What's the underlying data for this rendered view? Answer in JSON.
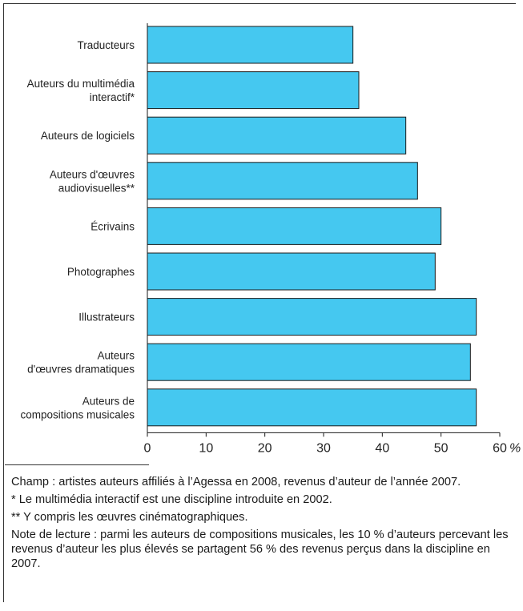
{
  "chart_data": {
    "type": "bar",
    "orientation": "horizontal",
    "categories": [
      [
        "Traducteurs"
      ],
      [
        "Auteurs du multimédia",
        "interactif*"
      ],
      [
        "Auteurs de logiciels"
      ],
      [
        "Auteurs d'œuvres",
        "audiovisuelles**"
      ],
      [
        "Écrivains"
      ],
      [
        "Photographes"
      ],
      [
        "Illustrateurs"
      ],
      [
        "Auteurs",
        "d'œuvres dramatiques"
      ],
      [
        "Auteurs de",
        "compositions musicales"
      ]
    ],
    "values": [
      35,
      36,
      44,
      46,
      50,
      49,
      56,
      55,
      56
    ],
    "xlim": [
      0,
      60
    ],
    "xticks": [
      "0",
      "10",
      "20",
      "30",
      "40",
      "50",
      "60"
    ],
    "xunit": "%",
    "bar_color": "#45c8f0",
    "bar_edge_color": "#1a1a1a"
  },
  "notes": {
    "champ": "Champ : artistes auteurs affiliés à l’Agessa en 2008, revenus d’auteur de l’année 2007.",
    "footnote1": "* Le multimédia interactif est une discipline introduite en 2002.",
    "footnote2": "** Y compris les œuvres cinématographiques.",
    "lecture": "Note de lecture : parmi les auteurs de compositions musicales, les 10 % d’auteurs percevant les revenus d’auteur les plus élevés se partagent 56 % des revenus perçus dans la discipline en 2007."
  }
}
